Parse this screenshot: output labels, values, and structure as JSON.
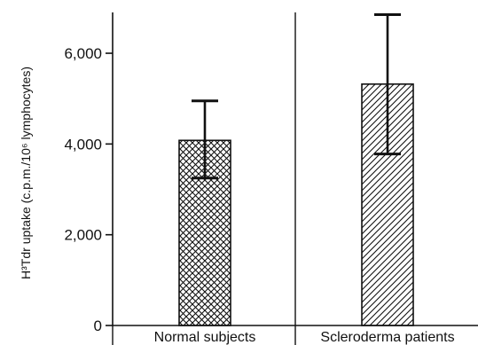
{
  "chart_data": {
    "type": "bar",
    "title": "",
    "xlabel": "",
    "ylabel": "H³Tdr uptake (c.p.m./10⁶ lymphocytes)",
    "ylim": [
      0,
      6900
    ],
    "yticks": [
      0,
      2000,
      4000,
      6000
    ],
    "ytick_labels": [
      "0",
      "2,000",
      "4,000",
      "6,000"
    ],
    "categories": [
      "Normal subjects",
      "Scleroderma patients"
    ],
    "values": [
      4080,
      5320
    ],
    "error_low": [
      3250,
      3780
    ],
    "error_high": [
      4950,
      6850
    ],
    "bar_patterns": [
      "crosshatch",
      "diagonal-hatch"
    ],
    "grid": false
  }
}
